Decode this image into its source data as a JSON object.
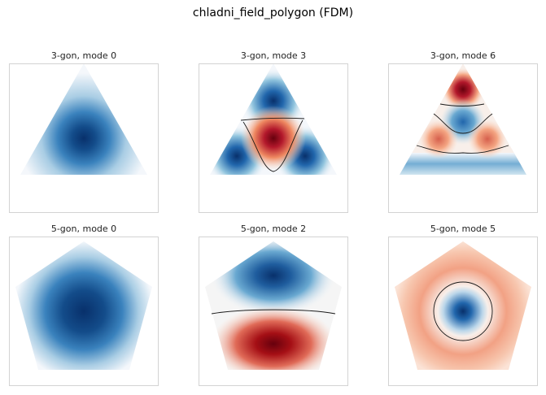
{
  "figure": {
    "title": "chladni_field_polygon (FDM)"
  },
  "colormap": {
    "name": "RdBu_r",
    "negative_dark": "#08306b",
    "negative_mid": "#4a90c6",
    "neutral": "#f4f7fb",
    "positive_mid": "#f08a68",
    "positive_dark": "#67000d",
    "nodal_line": "#1a1a1a",
    "frame": "#d3d3d3"
  },
  "panels": [
    {
      "title": "3-gon, mode 0",
      "sides": 3,
      "mode": 0,
      "pattern": "single-blue-lobe"
    },
    {
      "title": "3-gon, mode 3",
      "sides": 3,
      "mode": 3,
      "pattern": "three-blue-corners-red-center"
    },
    {
      "title": "3-gon, mode 6",
      "sides": 3,
      "mode": 6,
      "pattern": "alternating-horizontal-bands"
    },
    {
      "title": "5-gon, mode 0",
      "sides": 5,
      "mode": 0,
      "pattern": "single-blue-lobe"
    },
    {
      "title": "5-gon, mode 2",
      "sides": 5,
      "mode": 2,
      "pattern": "blue-top-red-bottom"
    },
    {
      "title": "5-gon, mode 5",
      "sides": 5,
      "mode": 5,
      "pattern": "blue-center-red-ring"
    }
  ]
}
